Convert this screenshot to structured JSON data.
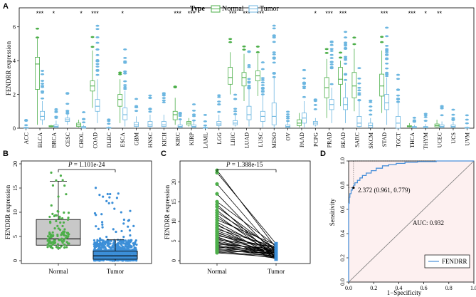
{
  "colors": {
    "normal": "#4daf4a",
    "tumor": "#6cb6e0",
    "boxGray": "#c8c8c8",
    "boxBlue": "#3c8fd8",
    "rocLine": "#4a90d9",
    "rocFill": "#fdf0f0"
  },
  "chart_data": [
    {
      "panel": "A",
      "type": "box",
      "ylabel": "FENDRR expression",
      "ylim": [
        0,
        7
      ],
      "yticks": [
        "0",
        "2",
        "4",
        "6"
      ],
      "legend": {
        "title": "Type",
        "items": [
          "Normal",
          "Tumor"
        ],
        "position": "top-center"
      },
      "categories": [
        "ACC",
        "BLCA",
        "BRCA",
        "CESC",
        "CHOL",
        "COAD",
        "DLBC",
        "ESCA",
        "GBM",
        "HNSC",
        "KICH",
        "KIRC",
        "KIRP",
        "LAML",
        "LGG",
        "LIHC",
        "LUAD",
        "LUSC",
        "MESO",
        "OV",
        "PAAD",
        "PCPG",
        "PRAD",
        "READ",
        "SARC",
        "SKCM",
        "STAD",
        "TGCT",
        "THCA",
        "THYM",
        "UCEC",
        "UCS",
        "UVM"
      ],
      "significance": [
        "",
        "***",
        "*",
        "",
        "*",
        "***",
        "",
        "*",
        "",
        "",
        "",
        "***",
        "***",
        "",
        "",
        "***",
        "***",
        "***",
        "",
        "",
        "",
        "*",
        "***",
        "***",
        "",
        "",
        "***",
        "",
        "***",
        "*",
        "**",
        "",
        ""
      ],
      "normal": [
        null,
        [
          0.2,
          2.3,
          3.8,
          4.2,
          5.3
        ],
        [
          0.05,
          0.08,
          0.1,
          0.15,
          0.2
        ],
        null,
        [
          0.05,
          0.1,
          0.2,
          0.3,
          0.5
        ],
        [
          1.2,
          2.2,
          2.5,
          2.8,
          4.6
        ],
        null,
        [
          0.3,
          1.3,
          1.7,
          2.0,
          2.9
        ],
        null,
        null,
        null,
        [
          0.2,
          0.5,
          0.8,
          1.0,
          1.8
        ],
        [
          0.1,
          0.2,
          0.3,
          0.4,
          0.6
        ],
        null,
        null,
        [
          2.0,
          2.6,
          3.0,
          3.6,
          4.5
        ],
        [
          1.6,
          2.5,
          3.0,
          3.3,
          4.4
        ],
        [
          1.9,
          2.8,
          3.1,
          3.4,
          4.4
        ],
        null,
        null,
        [
          0.05,
          0.15,
          0.3,
          0.5,
          0.9
        ],
        null,
        [
          0.6,
          1.8,
          2.4,
          3.0,
          4.1
        ],
        [
          1.3,
          2.6,
          2.9,
          3.6,
          4.0
        ],
        [
          1.0,
          1.8,
          2.5,
          3.3,
          4.7
        ],
        null,
        [
          0.9,
          1.9,
          2.5,
          3.2,
          4.6
        ],
        null,
        [
          0.05,
          0.08,
          0.1,
          0.15,
          0.3
        ],
        null,
        [
          0.05,
          0.08,
          0.15,
          0.25,
          0.5
        ],
        null,
        null
      ],
      "tumor": [
        [
          0.0,
          0.0,
          0.02,
          0.05,
          0.1
        ],
        [
          0.2,
          0.5,
          0.7,
          1.0,
          1.6
        ],
        [
          0.0,
          0.05,
          0.1,
          0.2,
          0.45
        ],
        [
          0.2,
          0.4,
          0.5,
          0.6,
          0.8
        ],
        [
          0.0,
          0.0,
          0.05,
          0.1,
          0.2
        ],
        [
          0.3,
          1.0,
          1.3,
          1.7,
          2.9
        ],
        [
          0.0,
          0.0,
          0.02,
          0.05,
          0.1
        ],
        [
          0.1,
          0.5,
          0.8,
          1.2,
          2.2
        ],
        [
          0.0,
          0.1,
          0.2,
          0.35,
          0.7
        ],
        [
          0.0,
          0.1,
          0.2,
          0.4,
          0.8
        ],
        [
          0.0,
          0.1,
          0.2,
          0.4,
          0.8
        ],
        [
          0.0,
          0.05,
          0.1,
          0.2,
          0.5
        ],
        [
          0.0,
          0.05,
          0.1,
          0.2,
          0.45
        ],
        [
          0.0,
          0.0,
          0.02,
          0.05,
          0.1
        ],
        [
          0.0,
          0.15,
          0.25,
          0.4,
          0.8
        ],
        [
          0.1,
          0.2,
          0.3,
          0.45,
          0.8
        ],
        [
          0.1,
          0.5,
          0.8,
          1.3,
          2.3
        ],
        [
          0.05,
          0.4,
          0.7,
          1.0,
          2.0
        ],
        [
          0.0,
          0.2,
          0.7,
          1.5,
          3.0
        ],
        [
          0.0,
          0.05,
          0.1,
          0.2,
          0.4
        ],
        [
          0.05,
          0.3,
          0.6,
          0.9,
          1.6
        ],
        [
          0.1,
          0.2,
          0.3,
          0.4,
          0.6
        ],
        [
          0.3,
          1.1,
          1.4,
          1.7,
          2.4
        ],
        [
          0.3,
          1.1,
          1.4,
          1.8,
          2.7
        ],
        [
          0.0,
          0.1,
          0.3,
          0.7,
          1.6
        ],
        [
          0.0,
          0.05,
          0.15,
          0.3,
          0.6
        ],
        [
          0.2,
          1.1,
          1.5,
          2.0,
          3.0
        ],
        [
          0.0,
          0.0,
          0.3,
          0.7,
          1.5
        ],
        [
          0.0,
          0.02,
          0.05,
          0.1,
          0.2
        ],
        [
          0.0,
          0.02,
          0.05,
          0.1,
          0.25
        ],
        [
          0.0,
          0.05,
          0.1,
          0.2,
          0.4
        ],
        [
          0.0,
          0.05,
          0.1,
          0.2,
          0.4
        ],
        [
          0.0,
          0.0,
          0.02,
          0.05,
          0.1
        ]
      ]
    },
    {
      "panel": "B",
      "type": "box",
      "ylabel": "FENDRR expression",
      "ylim": [
        0,
        20
      ],
      "yticks": [
        "0",
        "5",
        "10",
        "15",
        "20"
      ],
      "categories": [
        "Normal",
        "Tumor"
      ],
      "boxes": [
        [
          2.2,
          3.2,
          4.5,
          8.5,
          16.4
        ],
        [
          0.0,
          0.3,
          1.0,
          2.0,
          4.3
        ]
      ],
      "annotation": {
        "label": "P",
        "text": " = 1.101e-24"
      }
    },
    {
      "panel": "C",
      "type": "line",
      "ylabel": "FENDRR expression",
      "ylim": [
        0,
        25
      ],
      "yticks": [
        "0",
        "5",
        "10",
        "15",
        "20"
      ],
      "categories": [
        "Normal",
        "Tumor"
      ],
      "pairs": [
        [
          23.0,
          3.3
        ],
        [
          22.4,
          4.3
        ],
        [
          19.5,
          2.2
        ],
        [
          17.0,
          1.4
        ],
        [
          15.0,
          3.8
        ],
        [
          14.3,
          0.6
        ],
        [
          13.7,
          2.6
        ],
        [
          12.8,
          1.2
        ],
        [
          12.2,
          3.1
        ],
        [
          11.6,
          0.9
        ],
        [
          11.0,
          2.3
        ],
        [
          10.4,
          4.0
        ],
        [
          9.8,
          1.8
        ],
        [
          9.3,
          0.5
        ],
        [
          8.9,
          2.9
        ],
        [
          8.4,
          1.1
        ],
        [
          8.0,
          3.5
        ],
        [
          7.6,
          2.0
        ],
        [
          7.3,
          0.8
        ],
        [
          7.0,
          2.7
        ],
        [
          6.7,
          1.5
        ],
        [
          6.4,
          3.2
        ],
        [
          6.1,
          0.4
        ],
        [
          5.8,
          2.1
        ],
        [
          5.6,
          1.3
        ],
        [
          5.3,
          3.6
        ],
        [
          5.0,
          1.9
        ],
        [
          4.8,
          0.9
        ],
        [
          4.6,
          2.5
        ],
        [
          4.4,
          1.6
        ],
        [
          4.2,
          3.0
        ],
        [
          4.0,
          0.7
        ],
        [
          3.8,
          2.2
        ],
        [
          3.6,
          1.4
        ],
        [
          3.4,
          2.8
        ],
        [
          3.2,
          1.0
        ],
        [
          3.0,
          2.4
        ],
        [
          2.8,
          1.7
        ],
        [
          2.6,
          0.6
        ],
        [
          2.4,
          2.0
        ],
        [
          2.2,
          1.2
        ],
        [
          2.0,
          0.9
        ]
      ],
      "annotation": {
        "label": "P",
        "text": " = 1.388e-15"
      }
    },
    {
      "panel": "D",
      "type": "roc",
      "xlabel": "1−Specificity",
      "ylabel": "Sensitivity",
      "xlim": [
        0,
        1
      ],
      "ylim": [
        0,
        1
      ],
      "xticks": [
        "0.0",
        "0.2",
        "0.4",
        "0.6",
        "0.8",
        "1.0"
      ],
      "yticks": [
        "0.0",
        "0.2",
        "0.4",
        "0.6",
        "0.8",
        "1.0"
      ],
      "auc_text": "AUC: 0.932",
      "cutoff_text": "2.372 (0.961, 0.779)",
      "cutoff_point": [
        0.039,
        0.779
      ],
      "legend": "FENDRR",
      "curve": [
        [
          0,
          0
        ],
        [
          0,
          0.3
        ],
        [
          0,
          0.55
        ],
        [
          0.005,
          0.65
        ],
        [
          0.01,
          0.7
        ],
        [
          0.02,
          0.73
        ],
        [
          0.03,
          0.76
        ],
        [
          0.039,
          0.779
        ],
        [
          0.05,
          0.8
        ],
        [
          0.07,
          0.82
        ],
        [
          0.09,
          0.84
        ],
        [
          0.11,
          0.86
        ],
        [
          0.14,
          0.88
        ],
        [
          0.18,
          0.9
        ],
        [
          0.22,
          0.92
        ],
        [
          0.27,
          0.94
        ],
        [
          0.32,
          0.96
        ],
        [
          0.38,
          0.97
        ],
        [
          0.45,
          0.98
        ],
        [
          0.55,
          0.99
        ],
        [
          0.7,
          0.995
        ],
        [
          0.85,
          1.0
        ],
        [
          1,
          1
        ]
      ]
    }
  ]
}
